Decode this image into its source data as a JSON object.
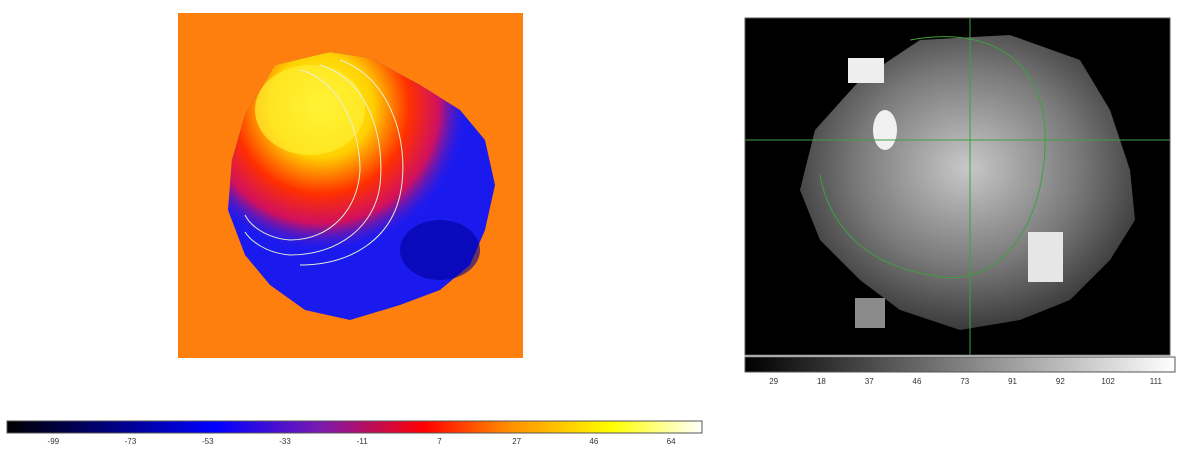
{
  "left_colorbar": {
    "ticks": [
      "-99",
      "-73",
      "-53",
      "-33",
      "-11",
      "7",
      "27",
      "46",
      "64"
    ]
  },
  "right_colorbar": {
    "ticks": [
      "29",
      "18",
      "37",
      "46",
      "73",
      "91",
      "92",
      "102",
      "111"
    ]
  }
}
